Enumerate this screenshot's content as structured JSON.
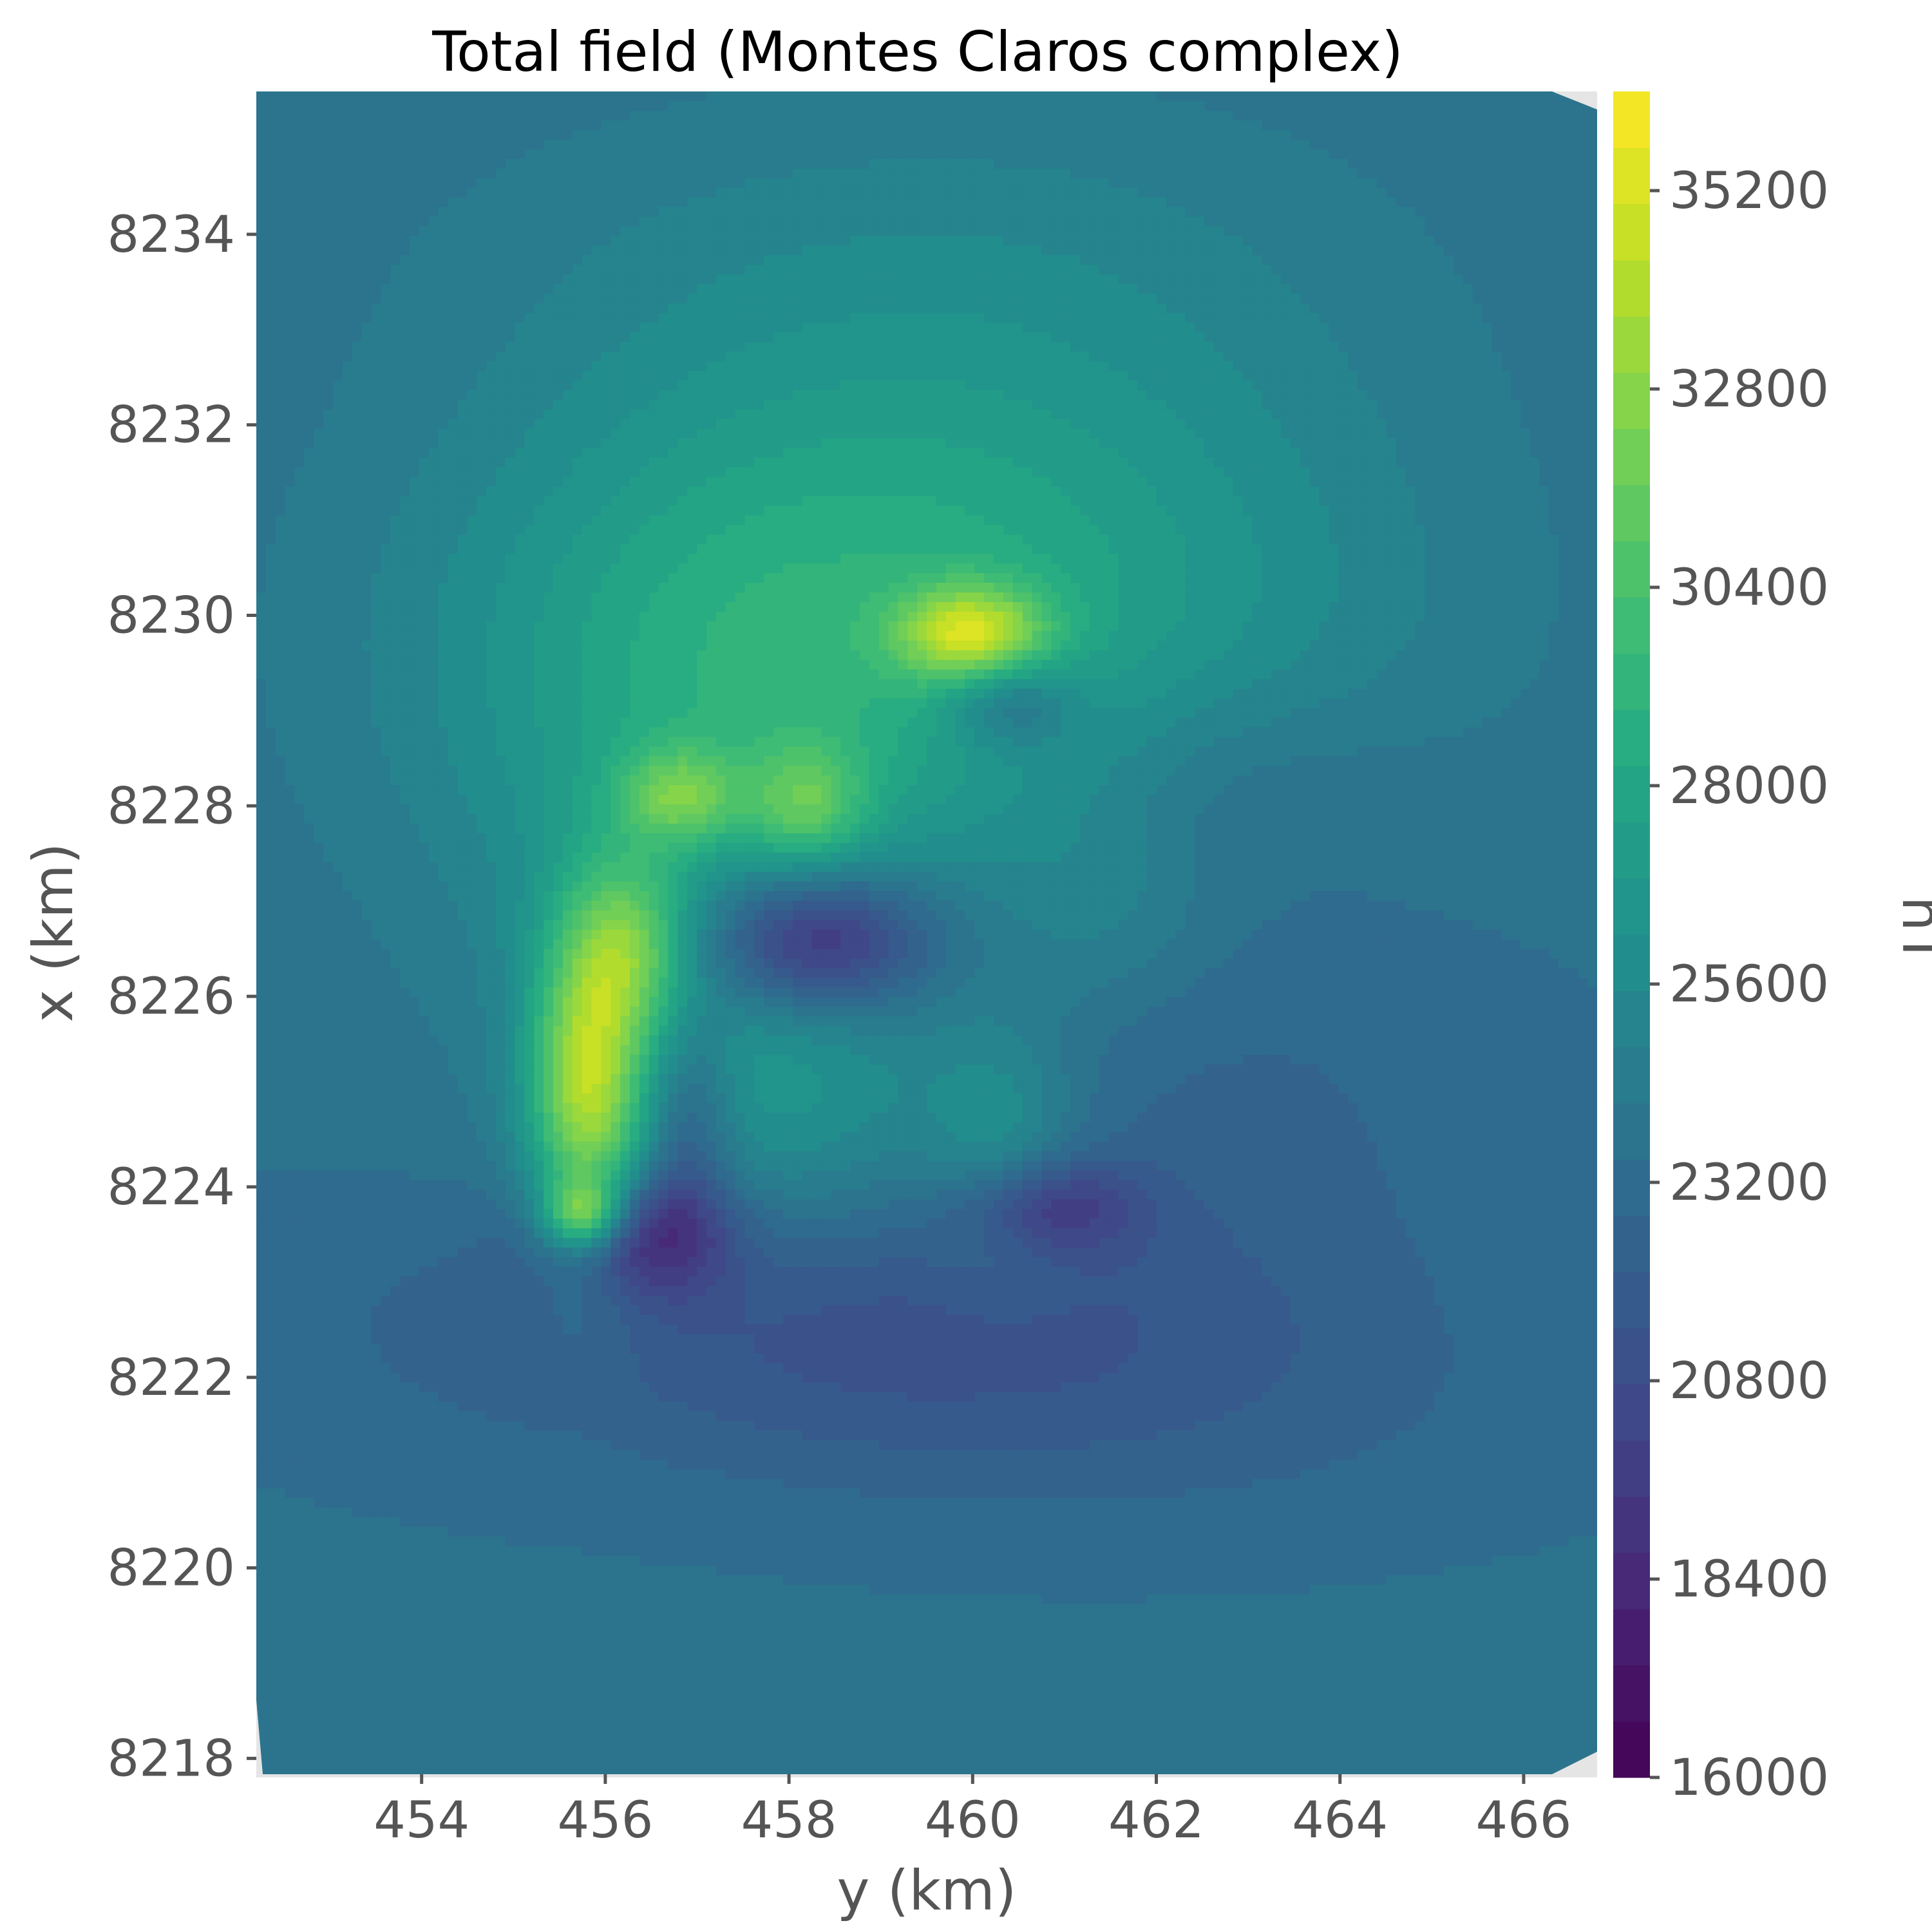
{
  "chart_data": {
    "type": "heatmap",
    "title": "Total field (Montes Claros complex)",
    "xlabel": "y (km)",
    "ylabel": "x (km)",
    "xlim": [
      452.2,
      466.8
    ],
    "ylim": [
      8217.8,
      8235.5
    ],
    "xticks": [
      454,
      456,
      458,
      460,
      462,
      464,
      466
    ],
    "yticks": [
      8218,
      8220,
      8222,
      8224,
      8226,
      8228,
      8230,
      8232,
      8234
    ],
    "colorbar": {
      "label": "nT",
      "range": [
        16000,
        36400
      ],
      "ticks": [
        16000,
        18400,
        20800,
        23200,
        25600,
        28000,
        30400,
        32800,
        35200
      ],
      "levels": 30,
      "colormap": "viridis"
    },
    "background": 23600,
    "anomalies": [
      {
        "y": 459.5,
        "x": 8230.4,
        "sy": 3.2,
        "sx": 2.3,
        "value": 3300
      },
      {
        "y": 457.5,
        "x": 8229.5,
        "sy": 2.8,
        "sx": 1.9,
        "value": 1800
      },
      {
        "y": 456.8,
        "x": 8227.2,
        "sy": 1.6,
        "sx": 2.5,
        "value": 1700
      },
      {
        "y": 462.0,
        "x": 8229.0,
        "sy": 2.8,
        "sx": 3.0,
        "value": 900
      },
      {
        "y": 459.1,
        "x": 8234.0,
        "sy": 3.8,
        "sx": 1.2,
        "value": 700
      },
      {
        "y": 455.8,
        "x": 8225.0,
        "sy": 0.45,
        "sx": 1.2,
        "value": 9200
      },
      {
        "y": 456.3,
        "x": 8226.5,
        "sy": 0.45,
        "sx": 0.65,
        "value": 5000
      },
      {
        "y": 455.75,
        "x": 8223.7,
        "sy": 0.3,
        "sx": 0.25,
        "value": 7000
      },
      {
        "y": 456.8,
        "x": 8228.1,
        "sy": 0.45,
        "sx": 0.35,
        "value": 4500
      },
      {
        "y": 458.2,
        "x": 8228.0,
        "sy": 0.45,
        "sx": 0.45,
        "value": 4000
      },
      {
        "y": 460.0,
        "x": 8229.8,
        "sy": 0.55,
        "sx": 0.35,
        "value": 7200
      },
      {
        "y": 460.3,
        "x": 8224.4,
        "sy": 0.6,
        "sx": 0.9,
        "value": 2600
      },
      {
        "y": 458.1,
        "x": 8224.9,
        "sy": 1.2,
        "sx": 1.0,
        "value": 2000
      },
      {
        "y": 461.5,
        "x": 8227.0,
        "sy": 0.7,
        "sx": 0.8,
        "value": 900
      },
      {
        "y": 458.3,
        "x": 8226.6,
        "sy": 0.9,
        "sx": 0.55,
        "value": -6500
      },
      {
        "y": 456.3,
        "x": 8223.5,
        "sy": 0.7,
        "sx": 0.45,
        "value": -5200
      },
      {
        "y": 460.8,
        "x": 8223.8,
        "sy": 0.7,
        "sx": 0.35,
        "value": -3600
      },
      {
        "y": 460.4,
        "x": 8229.1,
        "sy": 0.5,
        "sx": 0.35,
        "value": -3400
      },
      {
        "y": 456.9,
        "x": 8224.7,
        "sy": 0.35,
        "sx": 0.8,
        "value": -2800
      },
      {
        "y": 458.5,
        "x": 8222.6,
        "sy": 3.5,
        "sx": 1.0,
        "value": -2300
      },
      {
        "y": 462.6,
        "x": 8225.5,
        "sy": 2.4,
        "sx": 2.0,
        "value": -1400
      },
      {
        "y": 462.5,
        "x": 8228.2,
        "sy": 1.6,
        "sx": 0.8,
        "value": -1300
      },
      {
        "y": 461.5,
        "x": 8221.5,
        "sy": 3.5,
        "sx": 0.9,
        "value": -700
      }
    ]
  }
}
